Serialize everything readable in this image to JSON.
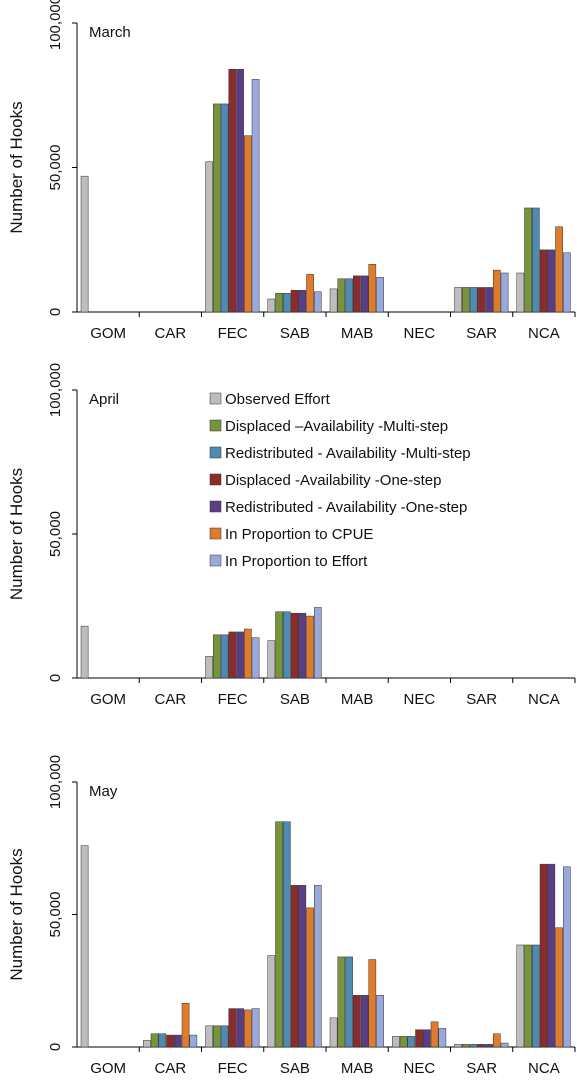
{
  "chart_data": [
    {
      "type": "bar",
      "title": "March",
      "ylabel": "Number of Hooks",
      "ylim": [
        0,
        100000
      ],
      "yticks": [
        "0",
        "50,000",
        "100,000"
      ],
      "categories": [
        "GOM",
        "CAR",
        "FEC",
        "SAB",
        "MAB",
        "NEC",
        "SAR",
        "NCA"
      ],
      "series": [
        {
          "name": "Observed Effort",
          "color": "#bdbdbd",
          "values": [
            47000,
            0,
            52000,
            4500,
            8000,
            0,
            8500,
            13500
          ]
        },
        {
          "name": "Displaced –Availability  -Multi-step",
          "color": "#77933c",
          "values": [
            0,
            0,
            72000,
            6500,
            11500,
            0,
            8500,
            36000
          ]
        },
        {
          "name": "Redistributed -  Availability -Multi-step",
          "color": "#4e8ab1",
          "values": [
            0,
            0,
            72000,
            6500,
            11500,
            0,
            8500,
            36000
          ]
        },
        {
          "name": "Displaced -Availability  -One-step",
          "color": "#8b2c2c",
          "values": [
            0,
            0,
            84000,
            7500,
            12500,
            0,
            8500,
            21500
          ]
        },
        {
          "name": "Redistributed -  Availability  -One-step",
          "color": "#5b3d85",
          "values": [
            0,
            0,
            84000,
            7500,
            12500,
            0,
            8500,
            21500
          ]
        },
        {
          "name": "In Proportion to CPUE",
          "color": "#e07b2c",
          "values": [
            0,
            0,
            61000,
            13000,
            16500,
            0,
            14500,
            29500
          ]
        },
        {
          "name": "In Proportion to Effort",
          "color": "#9aa9dc",
          "values": [
            0,
            0,
            80500,
            7000,
            12000,
            0,
            13500,
            20500
          ]
        }
      ]
    },
    {
      "type": "bar",
      "title": "April",
      "ylabel": "Number of Hooks",
      "ylim": [
        0,
        100000
      ],
      "yticks": [
        "0",
        "50,000",
        "100,000"
      ],
      "categories": [
        "GOM",
        "CAR",
        "FEC",
        "SAB",
        "MAB",
        "NEC",
        "SAR",
        "NCA"
      ],
      "series": [
        {
          "name": "Observed Effort",
          "color": "#bdbdbd",
          "values": [
            18000,
            0,
            7500,
            13000,
            0,
            0,
            0,
            0
          ]
        },
        {
          "name": "Displaced –Availability  -Multi-step",
          "color": "#77933c",
          "values": [
            0,
            0,
            15000,
            23000,
            0,
            0,
            0,
            0
          ]
        },
        {
          "name": "Redistributed -  Availability -Multi-step",
          "color": "#4e8ab1",
          "values": [
            0,
            0,
            15000,
            23000,
            0,
            0,
            0,
            0
          ]
        },
        {
          "name": "Displaced -Availability  -One-step",
          "color": "#8b2c2c",
          "values": [
            0,
            0,
            16000,
            22500,
            0,
            0,
            0,
            0
          ]
        },
        {
          "name": "Redistributed -  Availability  -One-step",
          "color": "#5b3d85",
          "values": [
            0,
            0,
            16000,
            22500,
            0,
            0,
            0,
            0
          ]
        },
        {
          "name": "In Proportion to CPUE",
          "color": "#e07b2c",
          "values": [
            0,
            0,
            17000,
            21500,
            0,
            0,
            0,
            0
          ]
        },
        {
          "name": "In Proportion to Effort",
          "color": "#9aa9dc",
          "values": [
            0,
            0,
            14000,
            24500,
            0,
            0,
            0,
            0
          ]
        }
      ]
    },
    {
      "type": "bar",
      "title": "May",
      "ylabel": "Number of Hooks",
      "ylim": [
        0,
        100000
      ],
      "yticks": [
        "0",
        "50,000",
        "100,000"
      ],
      "categories": [
        "GOM",
        "CAR",
        "FEC",
        "SAB",
        "MAB",
        "NEC",
        "SAR",
        "NCA"
      ],
      "series": [
        {
          "name": "Observed Effort",
          "color": "#bdbdbd",
          "values": [
            76000,
            2500,
            8000,
            34500,
            11000,
            4000,
            1000,
            38500
          ]
        },
        {
          "name": "Displaced –Availability  -Multi-step",
          "color": "#77933c",
          "values": [
            0,
            5000,
            8000,
            85000,
            34000,
            4000,
            1000,
            38500
          ]
        },
        {
          "name": "Redistributed -  Availability -Multi-step",
          "color": "#4e8ab1",
          "values": [
            0,
            5000,
            8000,
            85000,
            34000,
            4000,
            1000,
            38500
          ]
        },
        {
          "name": "Displaced -Availability  -One-step",
          "color": "#8b2c2c",
          "values": [
            0,
            4500,
            14500,
            61000,
            19500,
            6500,
            1000,
            69000
          ]
        },
        {
          "name": "Redistributed -  Availability  -One-step",
          "color": "#5b3d85",
          "values": [
            0,
            4500,
            14500,
            61000,
            19500,
            6500,
            1000,
            69000
          ]
        },
        {
          "name": "In Proportion to CPUE",
          "color": "#e07b2c",
          "values": [
            0,
            16500,
            14000,
            52500,
            33000,
            9500,
            5000,
            45000
          ]
        },
        {
          "name": "In Proportion to Effort",
          "color": "#9aa9dc",
          "values": [
            0,
            4500,
            14500,
            61000,
            19500,
            7000,
            1500,
            68000
          ]
        }
      ]
    }
  ],
  "legend": {
    "panel": "April",
    "items": [
      "Observed Effort",
      "Displaced –Availability  -Multi-step",
      "Redistributed -  Availability -Multi-step",
      "Displaced -Availability  -One-step",
      "Redistributed -  Availability  -One-step",
      "In Proportion to CPUE",
      "In Proportion to Effort"
    ]
  }
}
